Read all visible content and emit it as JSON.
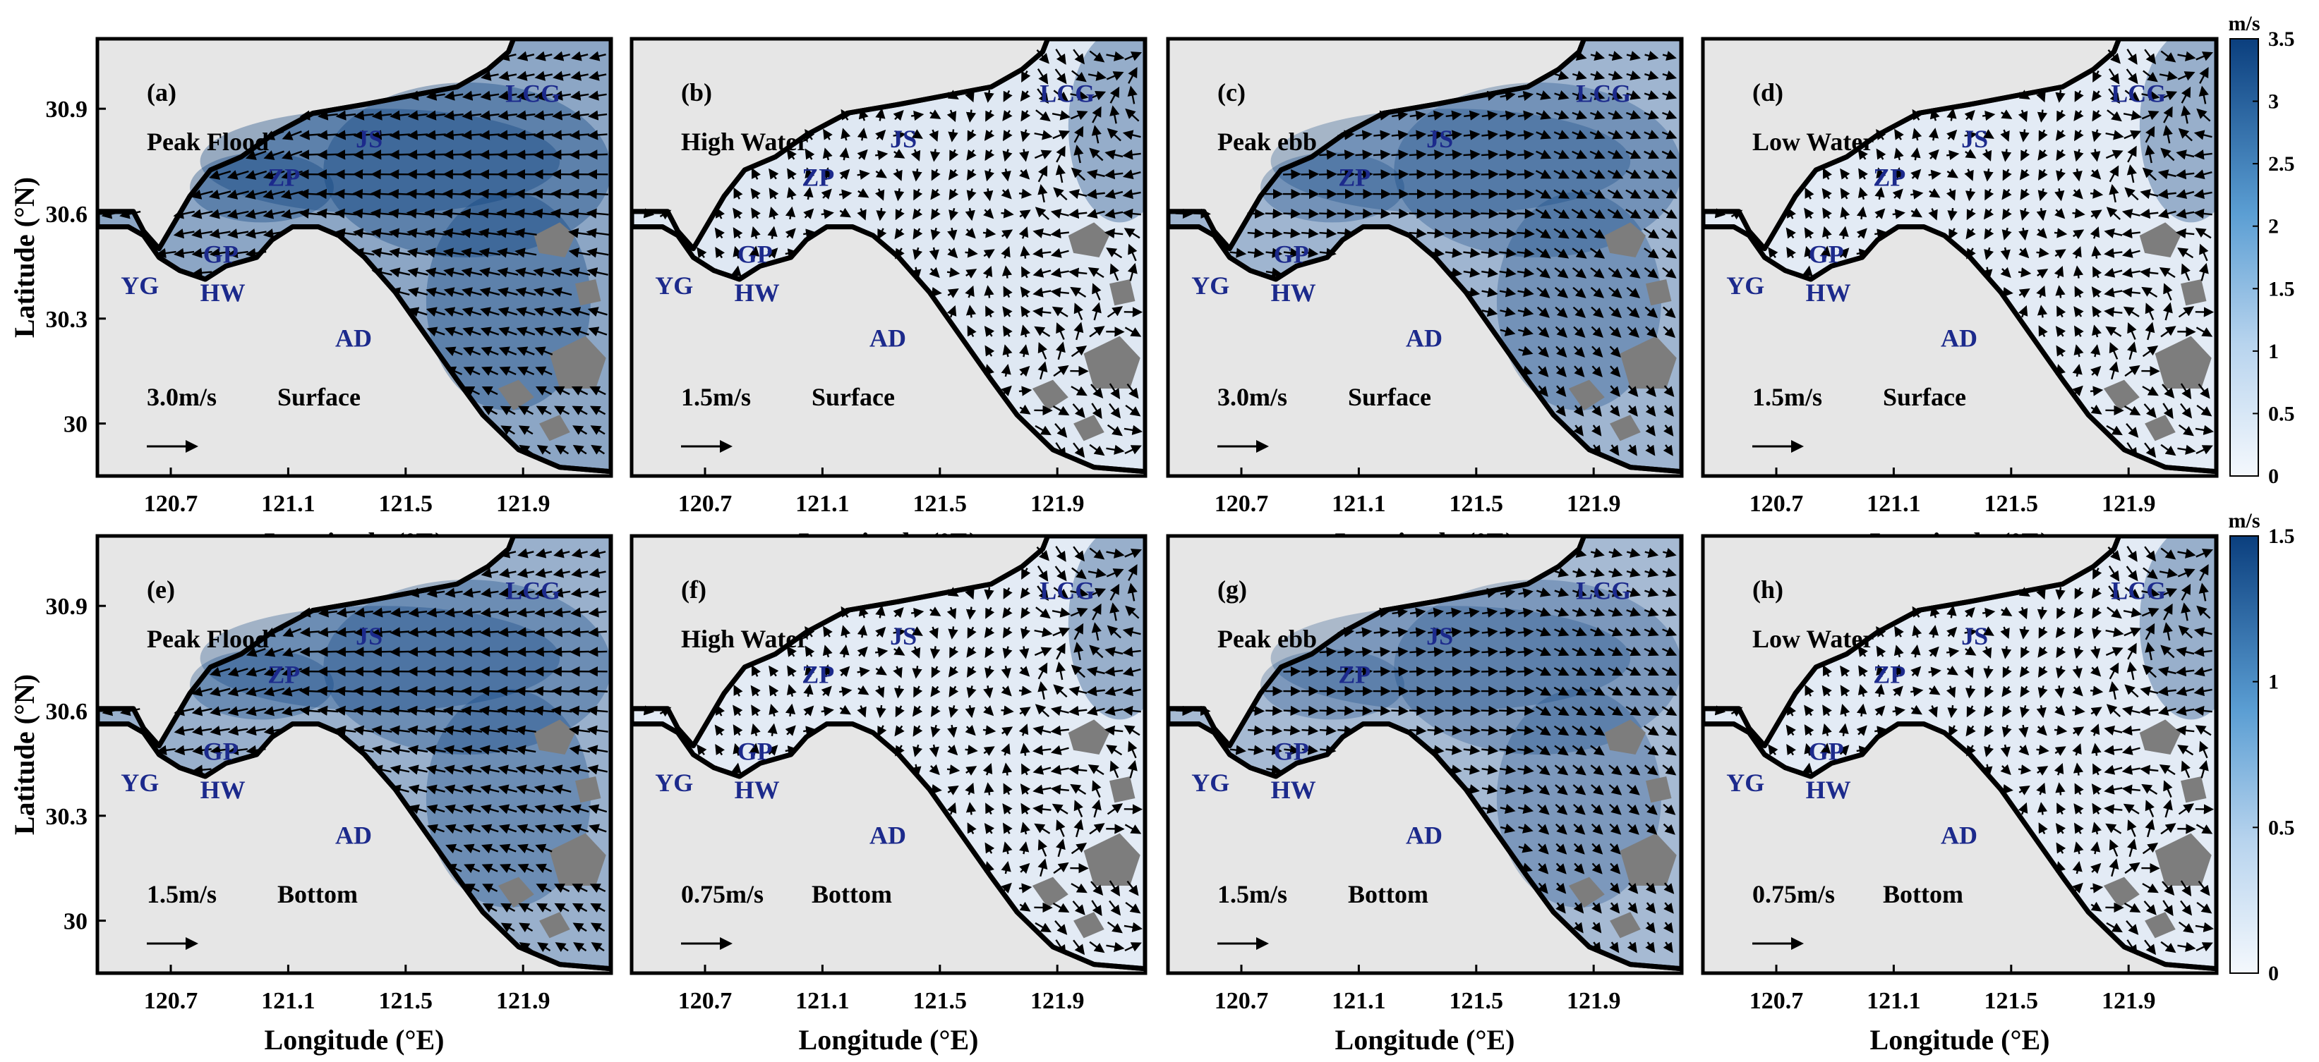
{
  "figure": {
    "xlabel": "Longitude (°E)",
    "ylabel": "Latitude (°N)",
    "xticks": [
      "120.7",
      "121.1",
      "121.5",
      "121.9"
    ],
    "yticks": [
      "30.9",
      "30.6",
      "30.3",
      "30"
    ],
    "xlim": [
      120.45,
      122.2
    ],
    "ylim": [
      29.85,
      31.1
    ],
    "rows": [
      {
        "layer": "Surface",
        "unit": "m/s",
        "cbar_max": 3.5,
        "cbar_ticks": [
          "3.5",
          "3",
          "2.5",
          "2",
          "1.5",
          "1",
          "0.5",
          "0"
        ]
      },
      {
        "layer": "Bottom",
        "unit": "m/s",
        "cbar_max": 1.5,
        "cbar_ticks": [
          "1.5",
          "1",
          "0.5",
          "0"
        ]
      }
    ],
    "panels": [
      {
        "id": "(a)",
        "phase": "Peak Flood",
        "scale": "3.0m/s",
        "layer": "Surface",
        "intensity": 0.8,
        "dir": "flood"
      },
      {
        "id": "(b)",
        "phase": "High Water",
        "scale": "1.5m/s",
        "layer": "Surface",
        "intensity": 0.15,
        "dir": "mixed"
      },
      {
        "id": "(c)",
        "phase": "Peak ebb",
        "scale": "3.0m/s",
        "layer": "Surface",
        "intensity": 0.65,
        "dir": "ebb"
      },
      {
        "id": "(d)",
        "phase": "Low Water",
        "scale": "1.5m/s",
        "layer": "Surface",
        "intensity": 0.12,
        "dir": "mixed"
      },
      {
        "id": "(e)",
        "phase": "Peak Flood",
        "scale": "1.5m/s",
        "layer": "Bottom",
        "intensity": 0.7,
        "dir": "flood"
      },
      {
        "id": "(f)",
        "phase": "High Water",
        "scale": "0.75m/s",
        "layer": "Bottom",
        "intensity": 0.12,
        "dir": "mixed"
      },
      {
        "id": "(g)",
        "phase": "Peak ebb",
        "scale": "1.5m/s",
        "layer": "Bottom",
        "intensity": 0.6,
        "dir": "ebb"
      },
      {
        "id": "(h)",
        "phase": "Low Water",
        "scale": "0.75m/s",
        "layer": "Bottom",
        "intensity": 0.12,
        "dir": "mixed"
      }
    ],
    "places": [
      {
        "name": "YG",
        "lon": 120.53,
        "lat": 30.37
      },
      {
        "name": "HW",
        "lon": 120.8,
        "lat": 30.35
      },
      {
        "name": "GP",
        "lon": 120.81,
        "lat": 30.46
      },
      {
        "name": "ZP",
        "lon": 121.03,
        "lat": 30.68
      },
      {
        "name": "JS",
        "lon": 121.33,
        "lat": 30.79
      },
      {
        "name": "LCG",
        "lon": 121.84,
        "lat": 30.92
      },
      {
        "name": "AD",
        "lon": 121.26,
        "lat": 30.22
      }
    ],
    "colors": {
      "land": "#e6e6e6",
      "island": "#7d7d7d",
      "water_low": "#f2f7fd",
      "water_high": "#0b3f7e",
      "coast": "#000000",
      "label": "#1c2a8c"
    }
  }
}
